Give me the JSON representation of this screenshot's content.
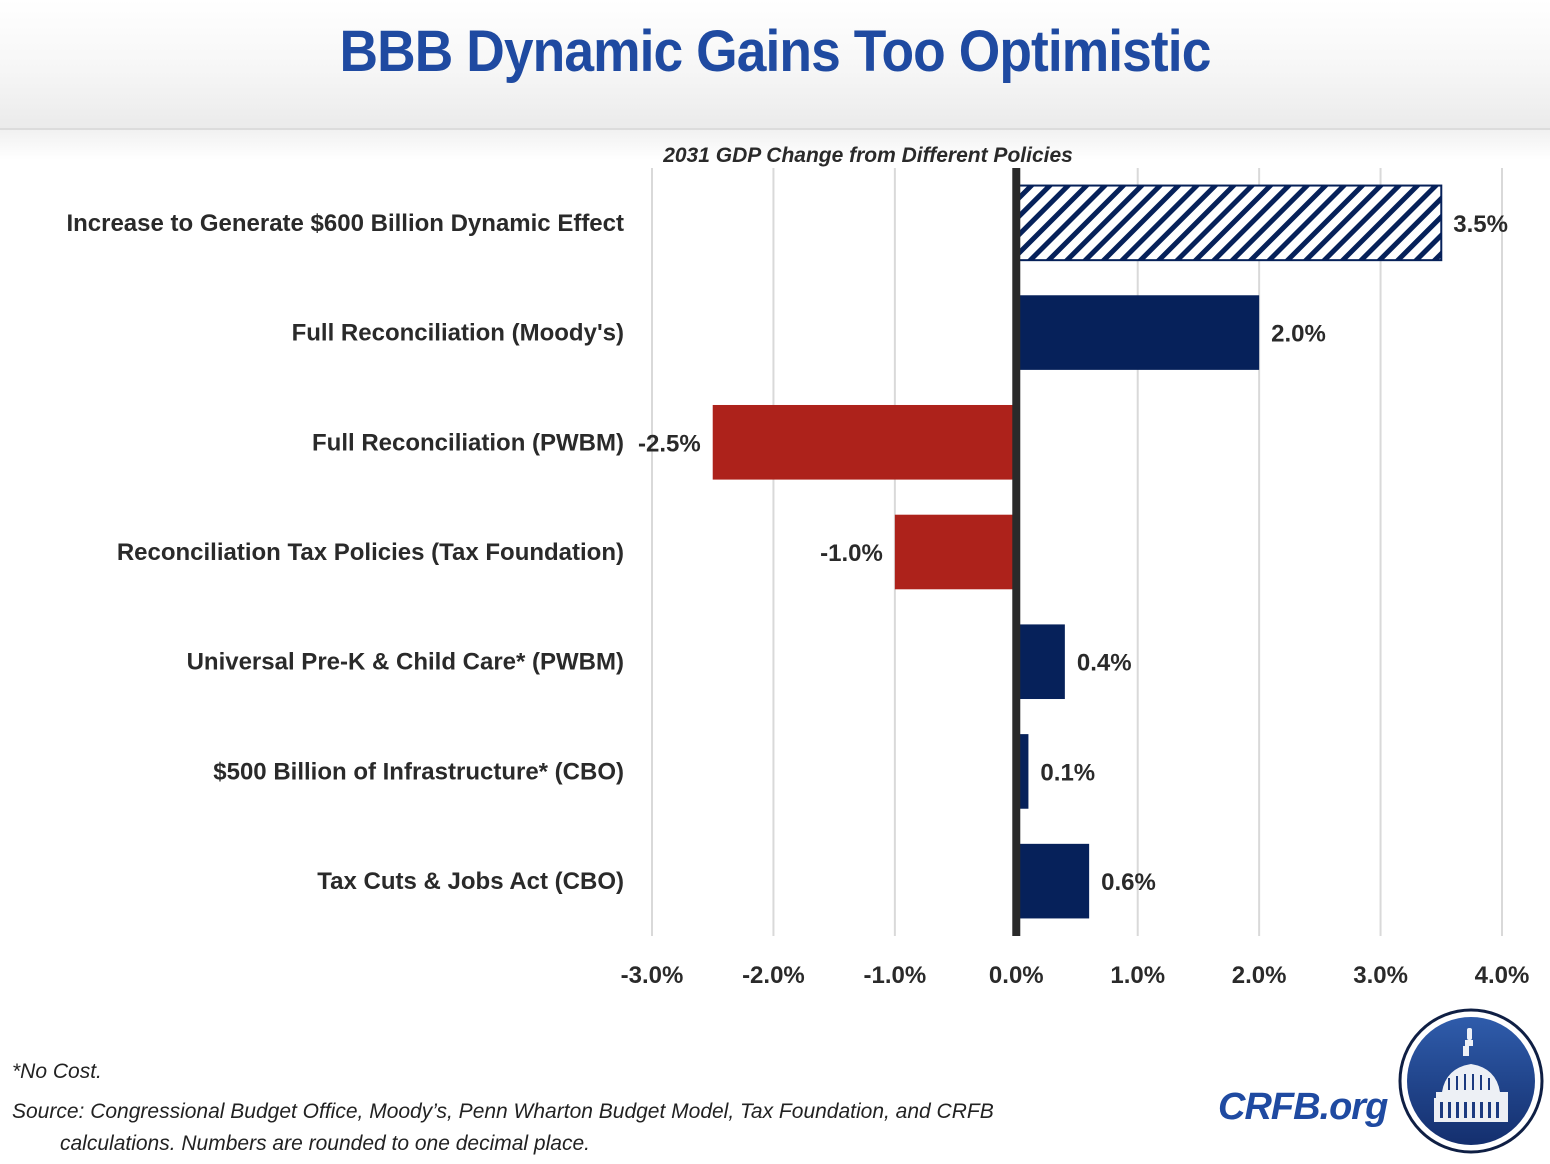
{
  "header": {
    "title": "BBB Dynamic Gains Too Optimistic"
  },
  "chart_data": {
    "type": "bar",
    "orientation": "horizontal",
    "title": "2031 GDP Change from Different Policies",
    "xlabel": "",
    "ylabel": "",
    "xlim": [
      -3.0,
      4.0
    ],
    "x_ticks": [
      -3.0,
      -2.0,
      -1.0,
      0.0,
      1.0,
      2.0,
      3.0,
      4.0
    ],
    "x_tick_labels": [
      "-3.0%",
      "-2.0%",
      "-1.0%",
      "0.0%",
      "1.0%",
      "2.0%",
      "3.0%",
      "4.0%"
    ],
    "grid": "vertical",
    "legend": "none",
    "categories": [
      "Increase to Generate $600 Billion Dynamic Effect",
      "Full Reconciliation (Moody's)",
      "Full Reconciliation (PWBM)",
      "Reconciliation Tax Policies (Tax Foundation)",
      "Universal Pre-K & Child Care* (PWBM)",
      "$500 Billion of Infrastructure* (CBO)",
      "Tax Cuts & Jobs Act (CBO)"
    ],
    "values": [
      3.5,
      2.0,
      -2.5,
      -1.0,
      0.4,
      0.1,
      0.6
    ],
    "data_labels": [
      "3.5%",
      "2.0%",
      "-2.5%",
      "-1.0%",
      "0.4%",
      "0.1%",
      "0.6%"
    ],
    "styles": [
      "hatched",
      "solid",
      "solid",
      "solid",
      "solid",
      "solid",
      "solid"
    ],
    "colors": {
      "positive": "#06215a",
      "negative": "#ad221b",
      "hatch_stroke": "#06215a",
      "hatch_bg": "#ffffff",
      "zero_line": "#2a2a2a",
      "grid": "#d9d9d9",
      "text": "#2a2a2a"
    }
  },
  "footer": {
    "footnote": "*No Cost.",
    "source_line1": "Source: Congressional Budget Office, Moody’s, Penn Wharton Budget Model, Tax Foundation, and CRFB",
    "source_line2": "calculations. Numbers are rounded to one decimal place.",
    "brand_link": "CRFB.org",
    "logo_icon": "capitol-dome-icon",
    "brand_color": "#1f4aa1"
  }
}
